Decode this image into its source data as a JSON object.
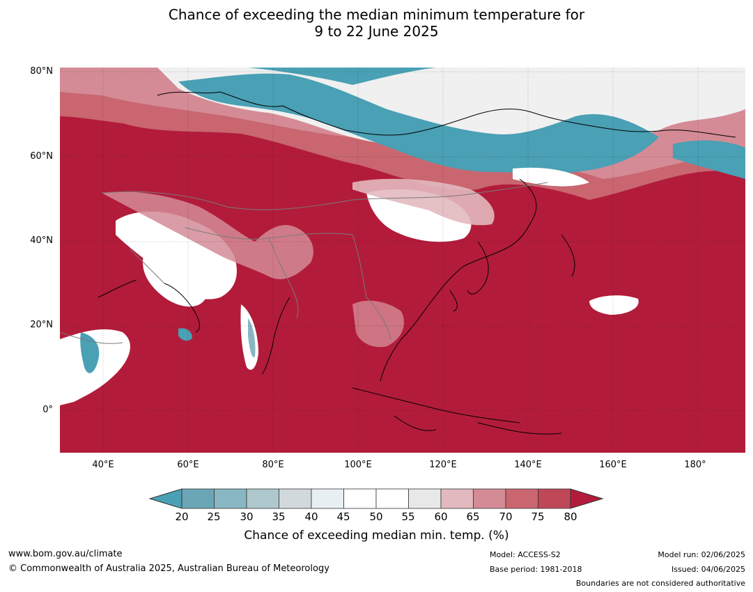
{
  "title_line1": "Chance of exceeding the median minimum temperature for",
  "title_line2": "9 to 22 June 2025",
  "map": {
    "lat_labels": [
      "80°N",
      "60°N",
      "40°N",
      "20°N",
      "0°"
    ],
    "lon_labels": [
      "40°E",
      "60°E",
      "80°E",
      "100°E",
      "120°E",
      "140°E",
      "160°E",
      "180°"
    ],
    "extent": {
      "lon_min": 30,
      "lon_max": 191,
      "lat_min": -10,
      "lat_max": 80
    },
    "dominant_color": "#b21c3a"
  },
  "colorbar": {
    "ticks": [
      "20",
      "25",
      "30",
      "35",
      "40",
      "45",
      "50",
      "55",
      "60",
      "65",
      "70",
      "75",
      "80"
    ],
    "colors": [
      "#6aa6b6",
      "#88b7c3",
      "#aec8ce",
      "#d2d9dc",
      "#e8eff2",
      "#ffffff",
      "#ffffff",
      "#e8e8e8",
      "#e2b9bf",
      "#d48b96",
      "#c96670",
      "#bf4858"
    ],
    "low_extend_color": "#4aa0b4",
    "high_extend_color": "#b21c3a",
    "label": "Chance of exceeding median min. temp. (%)"
  },
  "footer": {
    "url": "www.bom.gov.au/climate",
    "copyright": "© Commonwealth of Australia 2025, Australian Bureau of Meteorology",
    "model": "Model: ACCESS-S2",
    "base_period": "Base period: 1981-2018",
    "model_run": "Model run: 02/06/2025",
    "issued": "Issued: 04/06/2025",
    "disclaimer": "Boundaries are not considered authoritative"
  }
}
